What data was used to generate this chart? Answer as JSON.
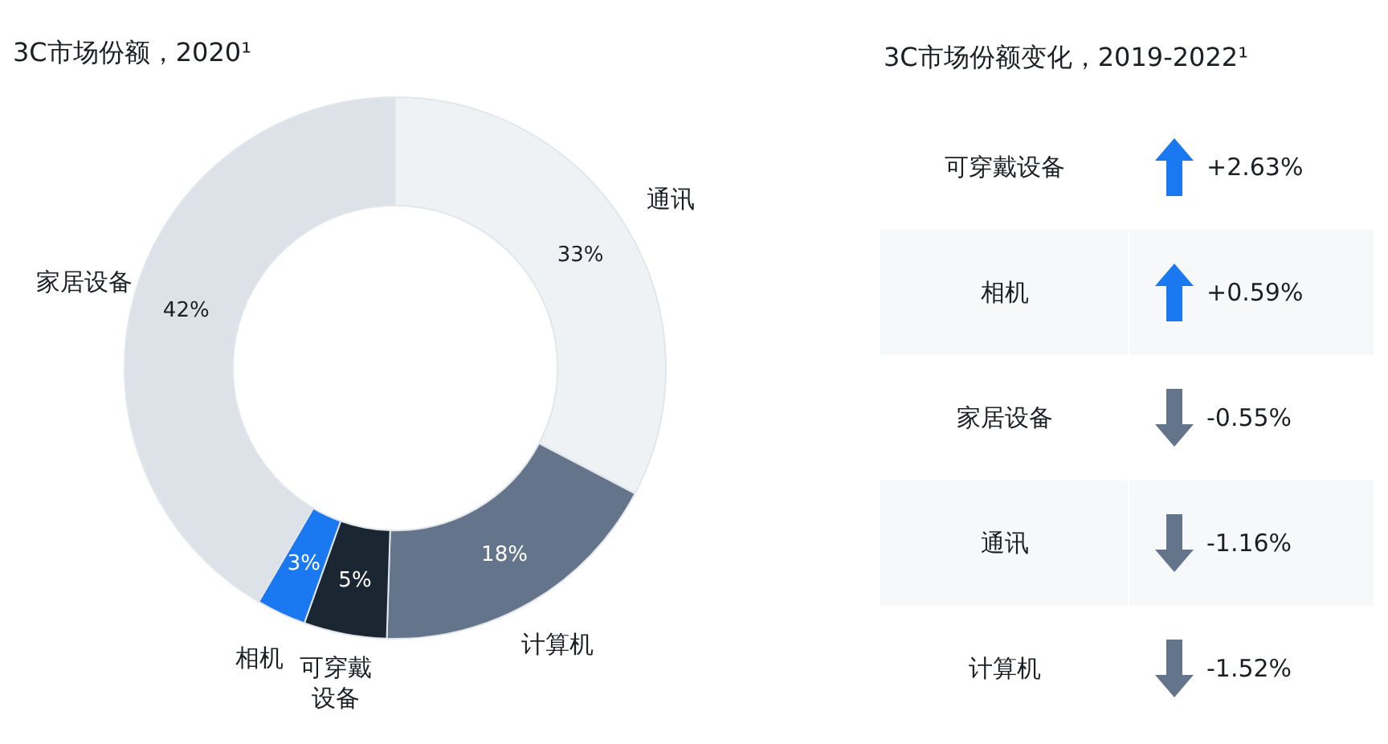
{
  "chart_data": [
    {
      "type": "donut",
      "title": "3C市场份额，2020¹",
      "categories": [
        "通讯",
        "计算机",
        "可穿戴设备",
        "相机",
        "家居设备"
      ],
      "values": [
        33,
        18,
        5,
        3,
        42
      ],
      "colors": [
        "#eff2f5",
        "#64748a",
        "#1a2733",
        "#1a78f0",
        "#dde2e8"
      ],
      "value_labels": [
        "33%",
        "18%",
        "5%",
        "3%",
        "42%"
      ]
    },
    {
      "type": "other",
      "title": "3C市场份额变化，2019-2022¹",
      "categories": [
        "可穿戴设备",
        "相机",
        "家居设备",
        "通讯",
        "计算机"
      ],
      "values": [
        2.63,
        0.59,
        -0.55,
        -1.16,
        -1.52
      ],
      "value_labels": [
        "+2.63%",
        "+0.59%",
        "-0.55%",
        "-1.16%",
        "-1.52%"
      ]
    }
  ]
}
